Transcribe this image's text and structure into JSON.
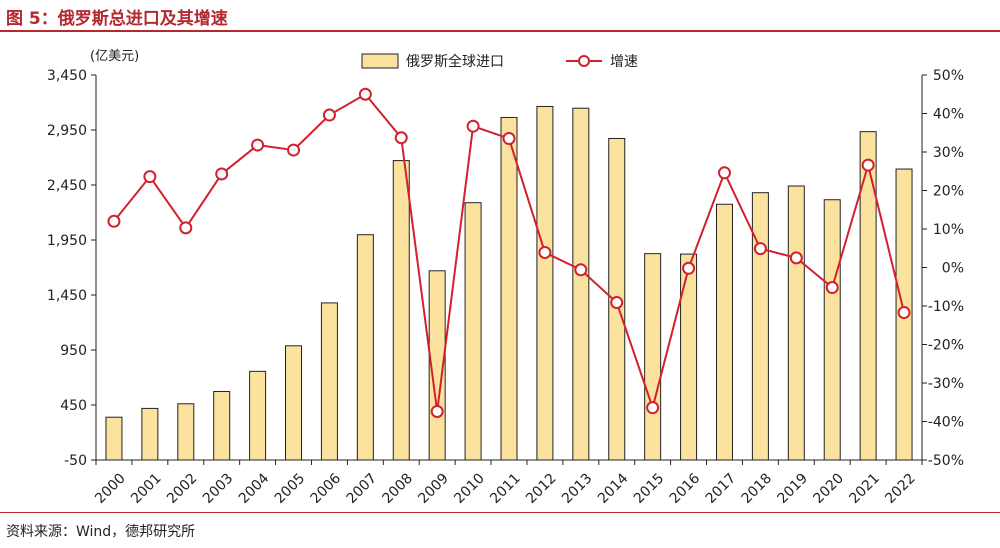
{
  "figure_title": "图 5：俄罗斯总进口及其增速",
  "source": "资料来源：Wind，德邦研究所",
  "chart_data": {
    "type": "bar",
    "categories": [
      "2000",
      "2001",
      "2002",
      "2003",
      "2004",
      "2005",
      "2006",
      "2007",
      "2008",
      "2009",
      "2010",
      "2011",
      "2012",
      "2013",
      "2014",
      "2015",
      "2016",
      "2017",
      "2018",
      "2019",
      "2020",
      "2021",
      "2022"
    ],
    "series": [
      {
        "name": "俄罗斯全球进口",
        "type": "bar",
        "axis": "left",
        "color": "#fbe29f",
        "values": [
          339,
          419,
          461,
          573,
          756,
          988,
          1378,
          1998,
          2672,
          1670,
          2289,
          3064,
          3164,
          3148,
          2873,
          1826,
          1822,
          2275,
          2380,
          2441,
          2316,
          2935,
          2595
        ]
      },
      {
        "name": "增速",
        "type": "line",
        "axis": "right",
        "color": "#d3202f",
        "values": [
          12,
          23.6,
          10.3,
          24.3,
          31.8,
          30.5,
          39.6,
          45,
          33.7,
          -37.4,
          36.7,
          33.5,
          3.9,
          -0.6,
          -9.1,
          -36.4,
          -0.2,
          24.6,
          4.9,
          2.5,
          -5.2,
          26.6,
          -11.7
        ]
      }
    ],
    "y_left": {
      "unit_label": "(亿美元)",
      "ylim": [
        -50,
        3450
      ],
      "ticks": [
        -50,
        450,
        950,
        1450,
        1950,
        2450,
        2950,
        3450
      ],
      "tick_labels": [
        "-50",
        "450",
        "950",
        "1,450",
        "1,950",
        "2,450",
        "2,950",
        "3,450"
      ]
    },
    "y_right": {
      "ylim": [
        -50,
        50
      ],
      "ticks": [
        -50,
        -40,
        -30,
        -20,
        -10,
        0,
        10,
        20,
        30,
        40,
        50
      ],
      "tick_labels": [
        "-50%",
        "-40%",
        "-30%",
        "-20%",
        "-10%",
        "0%",
        "10%",
        "20%",
        "30%",
        "40%",
        "50%"
      ]
    },
    "legend_position": "top-center",
    "grid": false
  }
}
